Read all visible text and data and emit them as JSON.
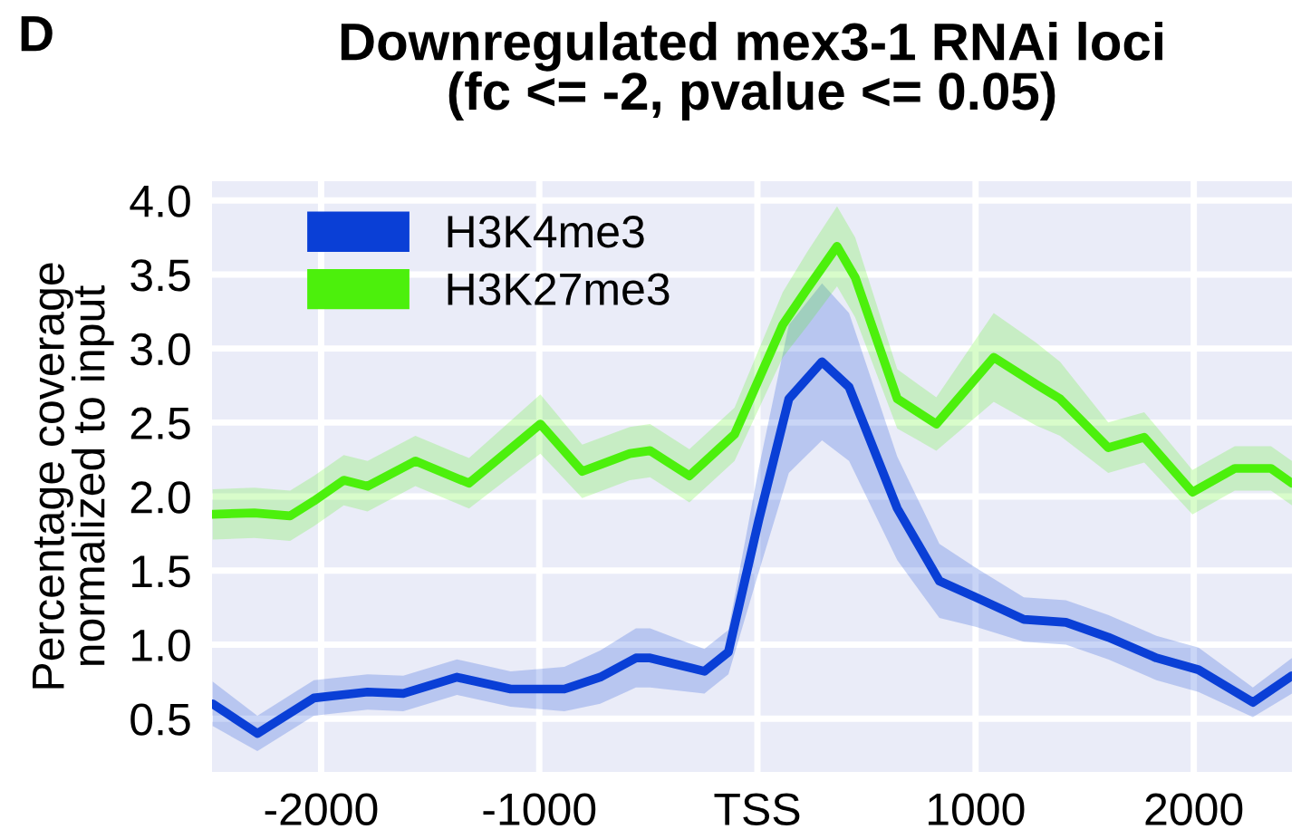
{
  "chart_data": {
    "type": "line",
    "title": "Downregulated mex3-1 RNAi loci\n(fc <= -2, pvalue <= 0.05)",
    "ylabel": "Percentage coverage\nnormalized to input",
    "annotations": [
      "D"
    ],
    "xlim": [
      -2500,
      2450
    ],
    "xticks": [
      -2000,
      -1000,
      {
        "value": 0,
        "label": "TSS"
      },
      1000,
      2000
    ],
    "ylim": [
      0.14,
      4.13
    ],
    "yticks": [
      {
        "value": 0.5,
        "label": "0.5"
      },
      {
        "value": 1.0,
        "label": "1.0"
      },
      {
        "value": 1.5,
        "label": "1.5"
      },
      {
        "value": 2.0,
        "label": "2.0"
      },
      {
        "value": 2.5,
        "label": "2.5"
      },
      {
        "value": 3.0,
        "label": "3.0"
      },
      {
        "value": 3.5,
        "label": "3.5"
      },
      {
        "value": 4.0,
        "label": "4.0"
      }
    ],
    "grid": true,
    "legend": "top left",
    "marker": "none",
    "line_style": "solid",
    "series": [
      {
        "name": "H3K4me3",
        "color": "#0a3fd6",
        "x": [
          -2497,
          -2292,
          -2033,
          -1787,
          -1623,
          -1377,
          -1131,
          -885,
          -721,
          -557,
          -492,
          -243,
          -133,
          6,
          144,
          296,
          420,
          641,
          834,
          1000,
          1221,
          1414,
          1608,
          1829,
          2022,
          2271,
          2450
        ],
        "values": [
          0.6,
          0.4,
          0.64,
          0.68,
          0.67,
          0.78,
          0.7,
          0.7,
          0.78,
          0.91,
          0.91,
          0.82,
          0.95,
          1.84,
          2.66,
          2.91,
          2.74,
          1.92,
          1.43,
          1.32,
          1.17,
          1.15,
          1.05,
          0.91,
          0.83,
          0.61,
          0.79
        ],
        "lower": [
          0.45,
          0.28,
          0.52,
          0.56,
          0.55,
          0.66,
          0.58,
          0.55,
          0.6,
          0.71,
          0.71,
          0.67,
          0.8,
          1.49,
          2.16,
          2.38,
          2.24,
          1.57,
          1.18,
          1.12,
          1.02,
          1.0,
          0.9,
          0.76,
          0.68,
          0.51,
          0.67
        ],
        "upper": [
          0.75,
          0.52,
          0.76,
          0.8,
          0.79,
          0.9,
          0.82,
          0.85,
          0.96,
          1.11,
          1.11,
          0.97,
          1.1,
          2.19,
          3.16,
          3.44,
          3.24,
          2.27,
          1.68,
          1.52,
          1.32,
          1.3,
          1.2,
          1.06,
          0.98,
          0.71,
          0.91
        ]
      },
      {
        "name": "H3K27me3",
        "color": "#4cf00c",
        "x": [
          -2497,
          -2306,
          -2142,
          -2033,
          -1896,
          -1787,
          -1568,
          -1322,
          -995,
          -803,
          -585,
          -492,
          -312,
          -105,
          116,
          227,
          365,
          448,
          641,
          820,
          1083,
          1276,
          1387,
          1608,
          1773,
          1994,
          2188,
          2354,
          2450
        ],
        "values": [
          1.88,
          1.89,
          1.87,
          1.97,
          2.11,
          2.07,
          2.24,
          2.09,
          2.49,
          2.17,
          2.29,
          2.31,
          2.14,
          2.42,
          3.16,
          3.4,
          3.69,
          3.48,
          2.66,
          2.49,
          2.94,
          2.76,
          2.66,
          2.33,
          2.4,
          2.03,
          2.19,
          2.19,
          2.09
        ],
        "lower": [
          1.71,
          1.72,
          1.7,
          1.8,
          1.94,
          1.9,
          2.07,
          1.92,
          2.29,
          1.99,
          2.11,
          2.13,
          1.96,
          2.24,
          2.94,
          3.15,
          3.42,
          3.21,
          2.46,
          2.31,
          2.64,
          2.48,
          2.41,
          2.16,
          2.23,
          1.88,
          2.04,
          2.04,
          1.94
        ],
        "upper": [
          2.05,
          2.06,
          2.04,
          2.14,
          2.28,
          2.24,
          2.41,
          2.26,
          2.69,
          2.35,
          2.47,
          2.49,
          2.32,
          2.6,
          3.38,
          3.65,
          3.96,
          3.75,
          2.86,
          2.67,
          3.24,
          3.04,
          2.91,
          2.5,
          2.57,
          2.18,
          2.34,
          2.34,
          2.24
        ]
      }
    ]
  }
}
